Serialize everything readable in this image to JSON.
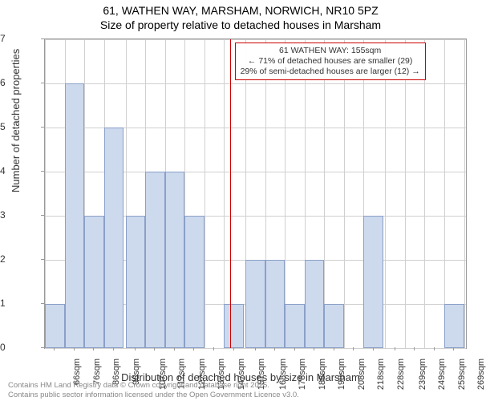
{
  "title_line1": "61, WATHEN WAY, MARSHAM, NORWICH, NR10 5PZ",
  "title_line2": "Size of property relative to detached houses in Marsham",
  "ylabel": "Number of detached properties",
  "xlabel": "Distribution of detached houses by size in Marsham",
  "footer_line1": "Contains HM Land Registry data © Crown copyright and database right 2025.",
  "footer_line2": "Contains public sector information licensed under the Open Government Licence v3.0.",
  "annotation": {
    "line1": "61 WATHEN WAY: 155sqm",
    "line2": "← 71% of detached houses are smaller (29)",
    "line3": "29% of semi-detached houses are larger (12) →"
  },
  "chart": {
    "type": "histogram",
    "ylim": [
      0,
      7
    ],
    "ytick_step": 1,
    "bar_color": "#cdd9ed",
    "bar_border": "#8aa0c8",
    "grid_color": "#d0d0d0",
    "marker_color": "#cc0000",
    "marker_x": 155,
    "x_min": 61,
    "x_max": 275,
    "bar_width_sqm": 10,
    "x_ticks": [
      "66sqm",
      "76sqm",
      "86sqm",
      "96sqm",
      "107sqm",
      "117sqm",
      "127sqm",
      "137sqm",
      "147sqm",
      "157sqm",
      "168sqm",
      "178sqm",
      "188sqm",
      "198sqm",
      "208sqm",
      "218sqm",
      "228sqm",
      "239sqm",
      "249sqm",
      "259sqm",
      "269sqm"
    ],
    "bars": [
      {
        "x": 61,
        "y": 1
      },
      {
        "x": 71,
        "y": 6
      },
      {
        "x": 81,
        "y": 3
      },
      {
        "x": 91,
        "y": 5
      },
      {
        "x": 102,
        "y": 3
      },
      {
        "x": 112,
        "y": 4
      },
      {
        "x": 122,
        "y": 4
      },
      {
        "x": 132,
        "y": 3
      },
      {
        "x": 142,
        "y": 0
      },
      {
        "x": 152,
        "y": 1
      },
      {
        "x": 163,
        "y": 2
      },
      {
        "x": 173,
        "y": 2
      },
      {
        "x": 183,
        "y": 1
      },
      {
        "x": 193,
        "y": 2
      },
      {
        "x": 203,
        "y": 1
      },
      {
        "x": 213,
        "y": 0
      },
      {
        "x": 223,
        "y": 3
      },
      {
        "x": 234,
        "y": 0
      },
      {
        "x": 244,
        "y": 0
      },
      {
        "x": 254,
        "y": 0
      },
      {
        "x": 264,
        "y": 1
      }
    ]
  }
}
